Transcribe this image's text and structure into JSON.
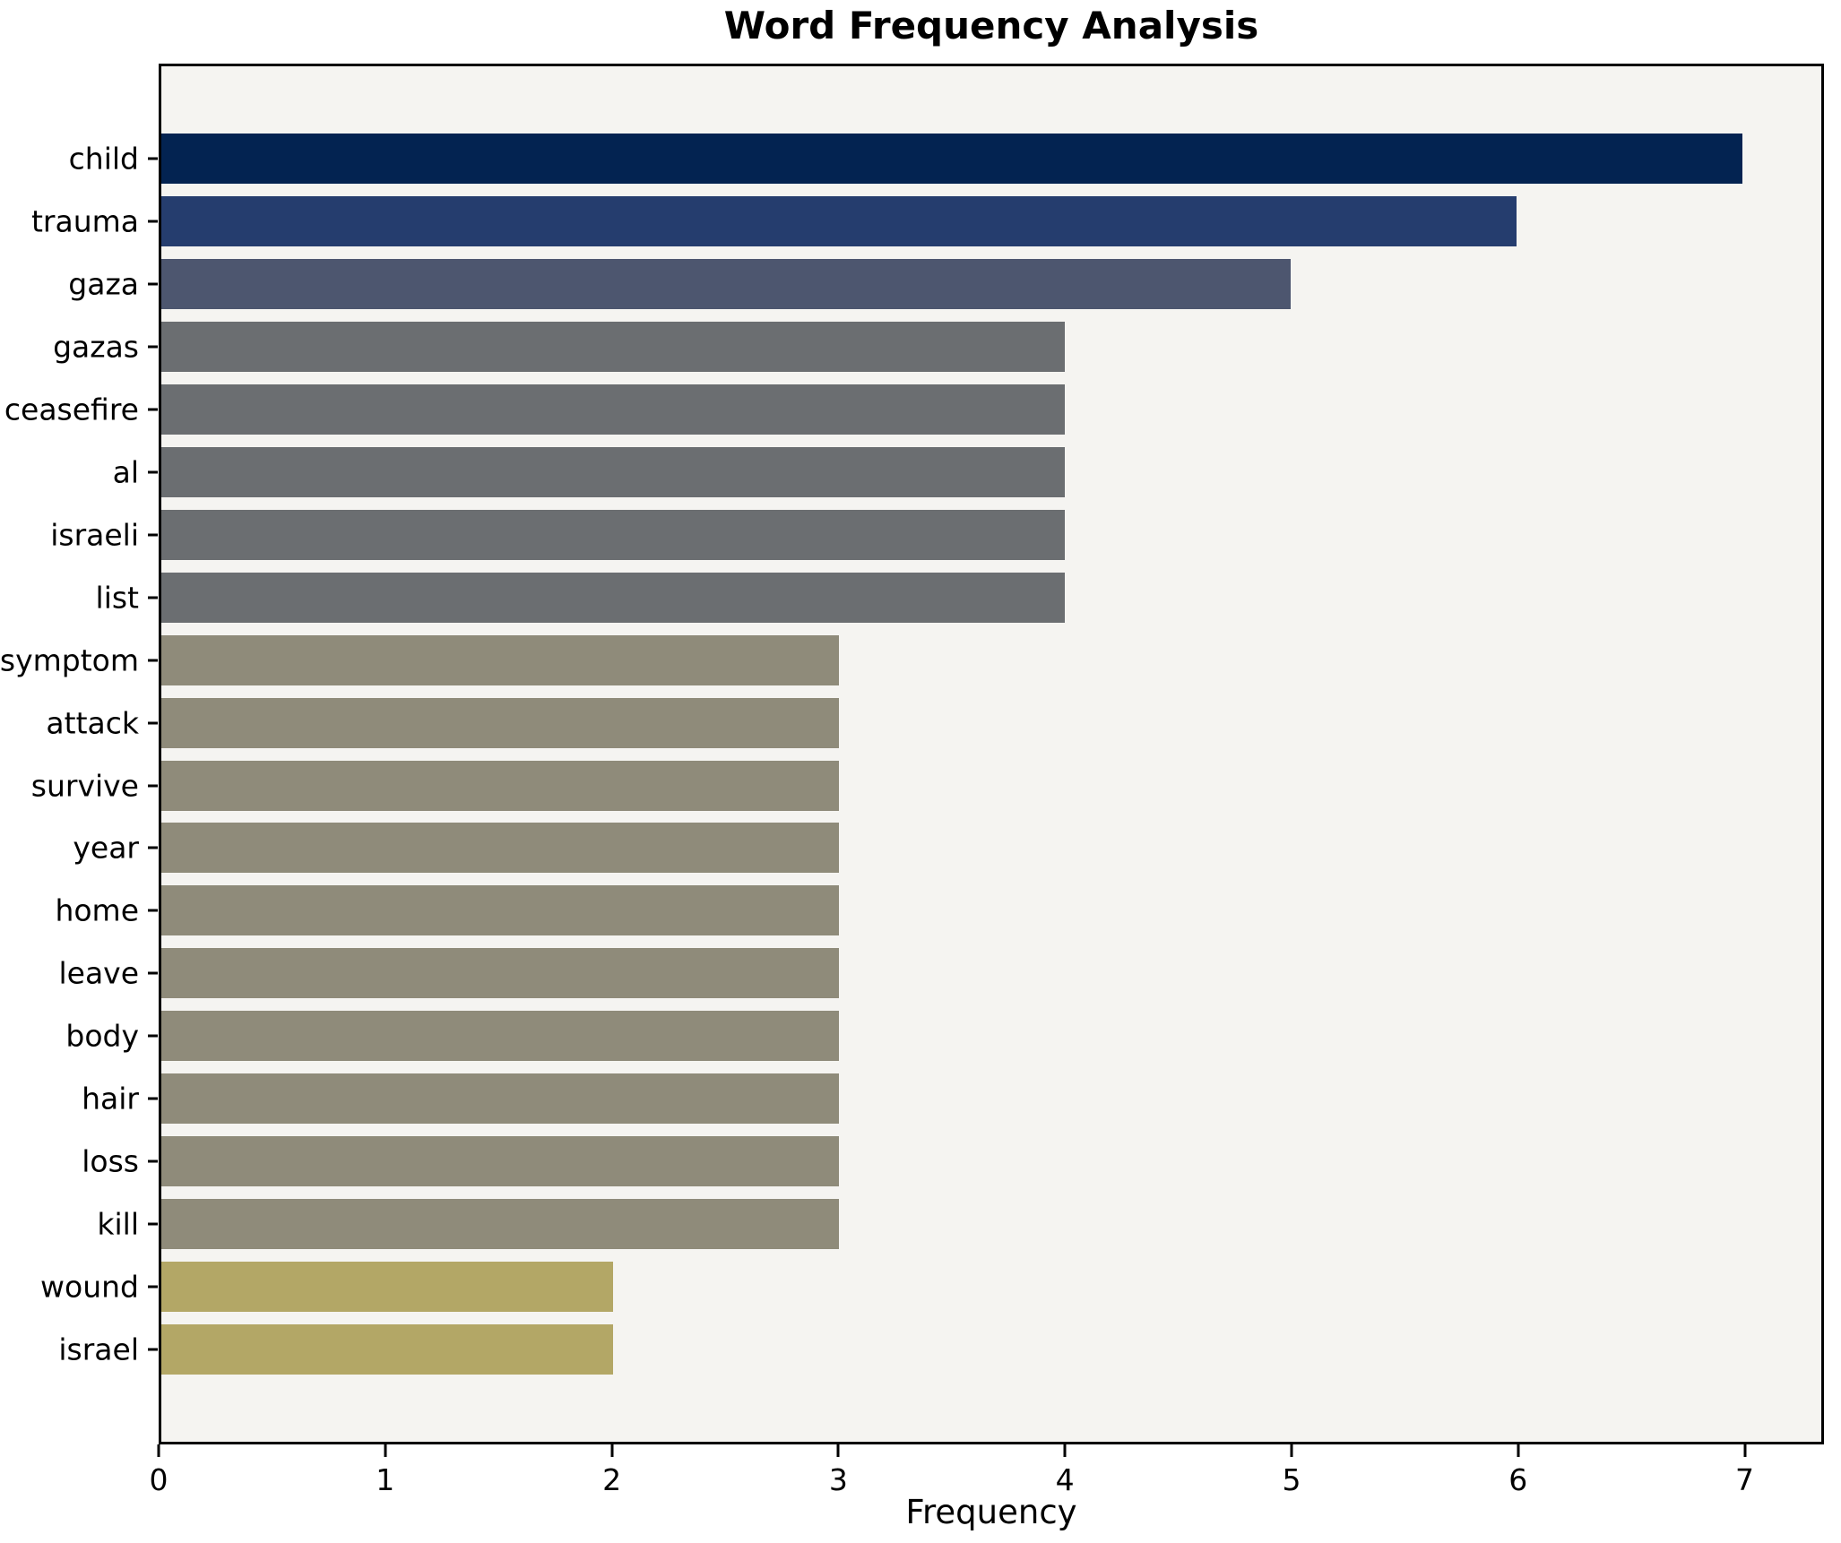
{
  "title": "Word Frequency Analysis",
  "chart_data": {
    "type": "bar",
    "orientation": "horizontal",
    "title": "Word Frequency Analysis",
    "xlabel": "Frequency",
    "ylabel": "",
    "categories": [
      "child",
      "trauma",
      "gaza",
      "gazas",
      "ceasefire",
      "al",
      "israeli",
      "list",
      "symptom",
      "attack",
      "survive",
      "year",
      "home",
      "leave",
      "body",
      "hair",
      "loss",
      "kill",
      "wound",
      "israel"
    ],
    "values": [
      7,
      6,
      5,
      4,
      4,
      4,
      4,
      4,
      3,
      3,
      3,
      3,
      3,
      3,
      3,
      3,
      3,
      3,
      2,
      2
    ],
    "bar_colors": [
      "#032351",
      "#253d6e",
      "#4d566f",
      "#6b6e71",
      "#6b6e71",
      "#6b6e71",
      "#6b6e71",
      "#6b6e71",
      "#8f8b7a",
      "#8f8b7a",
      "#8f8b7a",
      "#8f8b7a",
      "#8f8b7a",
      "#8f8b7a",
      "#8f8b7a",
      "#8f8b7a",
      "#8f8b7a",
      "#8f8b7a",
      "#b3a766",
      "#b3a766"
    ],
    "xticks": [
      0,
      1,
      2,
      3,
      4,
      5,
      6,
      7
    ],
    "xlim": [
      0,
      7.35
    ],
    "grid": false,
    "legend": "none",
    "plot_bg": "#f5f4f1",
    "figure_bg": "#ffffff",
    "spine_color": "#000000",
    "bar_height_fraction": 0.8
  }
}
